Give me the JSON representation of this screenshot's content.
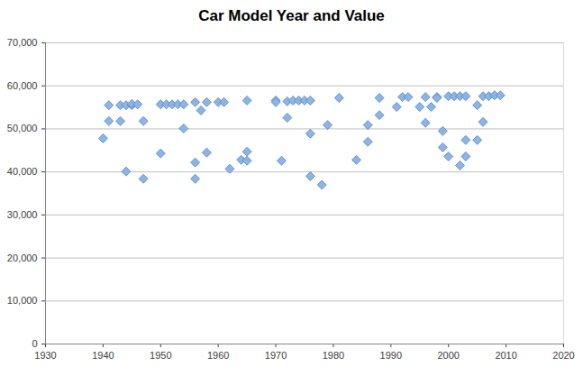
{
  "chart_data": {
    "type": "scatter",
    "title": "Car Model Year and Value",
    "x": [
      1940,
      1941,
      1941,
      1943,
      1943,
      1944,
      1944,
      1945,
      1945,
      1946,
      1947,
      1947,
      1950,
      1950,
      1951,
      1952,
      1953,
      1954,
      1954,
      1956,
      1956,
      1956,
      1957,
      1958,
      1958,
      1960,
      1961,
      1962,
      1964,
      1965,
      1965,
      1965,
      1970,
      1970,
      1971,
      1972,
      1972,
      1973,
      1974,
      1975,
      1976,
      1976,
      1976,
      1978,
      1979,
      1981,
      1984,
      1986,
      1986,
      1988,
      1988,
      1991,
      1992,
      1993,
      1995,
      1996,
      1996,
      1997,
      1998,
      1998,
      1999,
      1999,
      2000,
      2000,
      2001,
      2002,
      2002,
      2003,
      2003,
      2003,
      2005,
      2005,
      2006,
      2006,
      2007,
      2008,
      2009
    ],
    "values": [
      47800,
      51800,
      55500,
      55500,
      51800,
      55500,
      40100,
      55500,
      55800,
      55700,
      51800,
      38400,
      55700,
      44300,
      55700,
      55700,
      55700,
      55700,
      50100,
      56200,
      38400,
      42200,
      54300,
      56200,
      44500,
      56200,
      56200,
      40700,
      42800,
      56600,
      44700,
      42600,
      56600,
      56200,
      42600,
      52600,
      56400,
      56600,
      56600,
      56600,
      56600,
      48900,
      39000,
      37000,
      50900,
      57200,
      42800,
      50900,
      47000,
      53200,
      57200,
      55100,
      57400,
      57400,
      55100,
      57400,
      51400,
      55100,
      57400,
      57200,
      49500,
      45700,
      43600,
      57600,
      57600,
      57600,
      41500,
      57600,
      47400,
      43600,
      55500,
      47400,
      57600,
      51600,
      57600,
      57800,
      57800
    ],
    "color": "#8eb4e3",
    "marker": "diamond",
    "xlim": [
      1930,
      2020
    ],
    "xticks": [
      1930,
      1940,
      1950,
      1960,
      1970,
      1980,
      1990,
      2000,
      2010,
      2020
    ],
    "ylim": [
      0,
      70000
    ],
    "yticks": [
      0,
      {
        "value": 10000,
        "label": "10,000"
      },
      {
        "value": 20000,
        "label": "20,000"
      },
      {
        "value": 30000,
        "label": "30,000"
      },
      {
        "value": 40000,
        "label": "40,000"
      },
      {
        "value": 50000,
        "label": "50,000"
      },
      {
        "value": 60000,
        "label": "60,000"
      },
      {
        "value": 70000,
        "label": "70,000"
      }
    ],
    "grid": true
  }
}
